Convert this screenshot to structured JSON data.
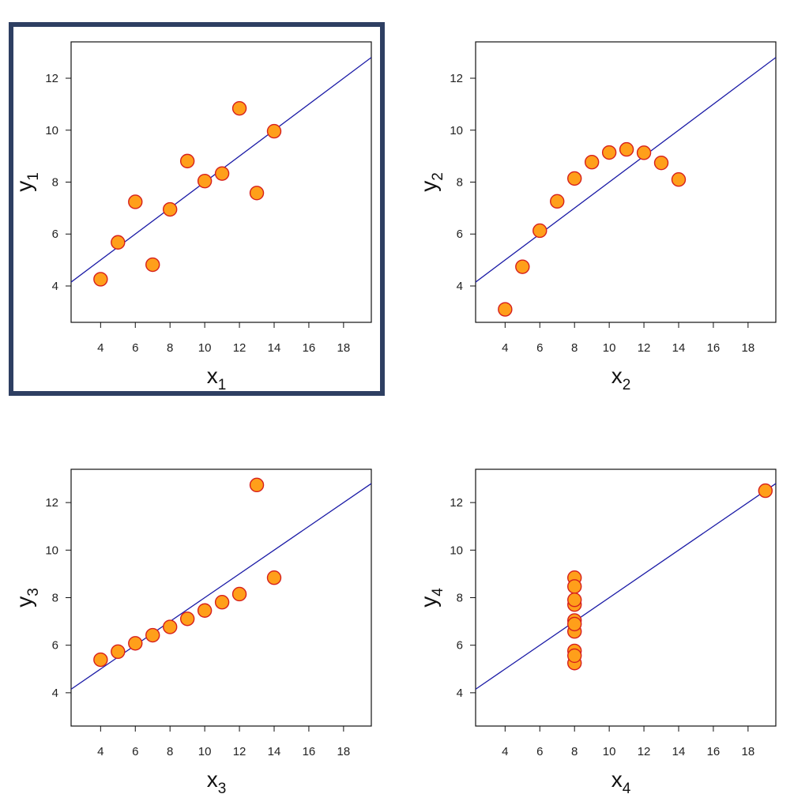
{
  "style": {
    "point_fill": "#ff9f1a",
    "point_stroke": "#d6201d",
    "line_color": "#1a1aa6",
    "highlight_border": "#2e3f62"
  },
  "highlighted_panel": 0,
  "chart_data": [
    {
      "type": "scatter",
      "xlabel": "x",
      "xlabel_sub": "1",
      "ylabel": "y",
      "ylabel_sub": "1",
      "xlim": [
        2.3,
        19.6
      ],
      "ylim": [
        2.6,
        13.4
      ],
      "xticks": [
        4,
        6,
        8,
        10,
        12,
        14,
        16,
        18
      ],
      "yticks": [
        4,
        6,
        8,
        10,
        12
      ],
      "x": [
        10,
        8,
        13,
        9,
        11,
        14,
        6,
        4,
        12,
        7,
        5
      ],
      "y": [
        8.04,
        6.95,
        7.58,
        8.81,
        8.33,
        9.96,
        7.24,
        4.26,
        10.84,
        4.82,
        5.68
      ],
      "fit_line": {
        "intercept": 3.0,
        "slope": 0.5
      }
    },
    {
      "type": "scatter",
      "xlabel": "x",
      "xlabel_sub": "2",
      "ylabel": "y",
      "ylabel_sub": "2",
      "xlim": [
        2.3,
        19.6
      ],
      "ylim": [
        2.6,
        13.4
      ],
      "xticks": [
        4,
        6,
        8,
        10,
        12,
        14,
        16,
        18
      ],
      "yticks": [
        4,
        6,
        8,
        10,
        12
      ],
      "x": [
        10,
        8,
        13,
        9,
        11,
        14,
        6,
        4,
        12,
        7,
        5
      ],
      "y": [
        9.14,
        8.14,
        8.74,
        8.77,
        9.26,
        8.1,
        6.13,
        3.1,
        9.13,
        7.26,
        4.74
      ],
      "fit_line": {
        "intercept": 3.0,
        "slope": 0.5
      }
    },
    {
      "type": "scatter",
      "xlabel": "x",
      "xlabel_sub": "3",
      "ylabel": "y",
      "ylabel_sub": "3",
      "xlim": [
        2.3,
        19.6
      ],
      "ylim": [
        2.6,
        13.4
      ],
      "xticks": [
        4,
        6,
        8,
        10,
        12,
        14,
        16,
        18
      ],
      "yticks": [
        4,
        6,
        8,
        10,
        12
      ],
      "x": [
        10,
        8,
        13,
        9,
        11,
        14,
        6,
        4,
        12,
        7,
        5
      ],
      "y": [
        7.46,
        6.77,
        12.74,
        7.11,
        7.81,
        8.84,
        6.08,
        5.39,
        8.15,
        6.42,
        5.73
      ],
      "fit_line": {
        "intercept": 3.0,
        "slope": 0.5
      }
    },
    {
      "type": "scatter",
      "xlabel": "x",
      "xlabel_sub": "4",
      "ylabel": "y",
      "ylabel_sub": "4",
      "xlim": [
        2.3,
        19.6
      ],
      "ylim": [
        2.6,
        13.4
      ],
      "xticks": [
        4,
        6,
        8,
        10,
        12,
        14,
        16,
        18
      ],
      "yticks": [
        4,
        6,
        8,
        10,
        12
      ],
      "x": [
        8,
        8,
        8,
        8,
        8,
        8,
        8,
        19,
        8,
        8,
        8
      ],
      "y": [
        6.58,
        5.76,
        7.71,
        8.84,
        8.47,
        7.04,
        5.25,
        12.5,
        5.56,
        7.91,
        6.89
      ],
      "fit_line": {
        "intercept": 3.0,
        "slope": 0.5
      }
    }
  ]
}
